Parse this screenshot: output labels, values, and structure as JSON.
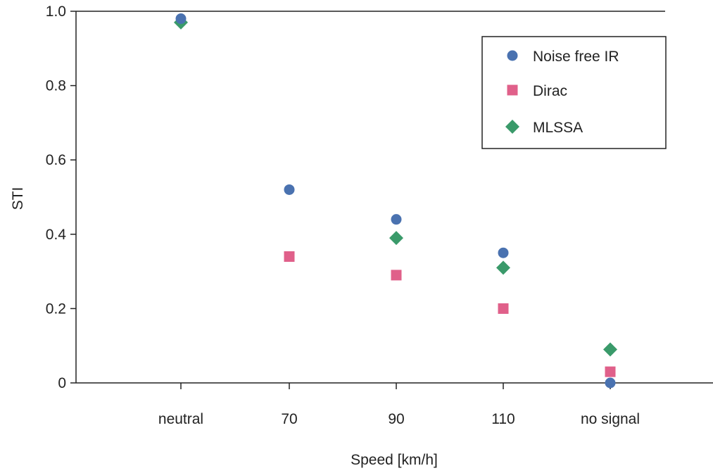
{
  "chart_data": {
    "type": "scatter",
    "categories": [
      "neutral",
      "70",
      "90",
      "110",
      "no signal"
    ],
    "xlabel": "Speed [km/h]",
    "ylabel": "STI",
    "ylim": [
      0,
      1.0
    ],
    "yticks": [
      0,
      0.2,
      0.4,
      0.6,
      0.8,
      1.0
    ],
    "ytick_labels": [
      "0",
      "0.2",
      "0.4",
      "0.6",
      "0.8",
      "1.0"
    ],
    "grid": false,
    "legend_position": "top-right",
    "series": [
      {
        "name": "Noise free IR",
        "marker": "circle",
        "color": "#4a72b0",
        "values": [
          0.98,
          0.52,
          0.44,
          0.35,
          0.0
        ]
      },
      {
        "name": "Dirac",
        "marker": "square",
        "color": "#e0608a",
        "values": [
          null,
          0.34,
          0.29,
          0.2,
          0.03
        ]
      },
      {
        "name": "MLSSA",
        "marker": "diamond",
        "color": "#3a9a6a",
        "values": [
          0.97,
          null,
          0.39,
          0.31,
          0.09
        ]
      }
    ]
  }
}
